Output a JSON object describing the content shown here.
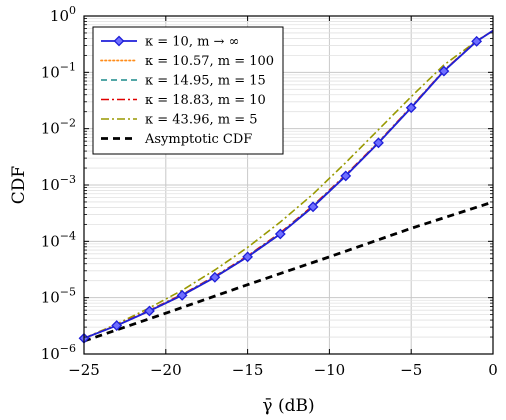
{
  "chart_data": {
    "type": "line",
    "xlabel": "γ̄ (dB)",
    "ylabel": "CDF",
    "xlim": [
      -25,
      0
    ],
    "ylim_exponents": [
      -6,
      0
    ],
    "y_scale": "log",
    "grid": true,
    "legend_position": "top-left",
    "x_ticks": [
      -25,
      -20,
      -15,
      -10,
      -5,
      0
    ],
    "x_tick_labels": [
      "−25",
      "−20",
      "−15",
      "−10",
      "−5",
      "0"
    ],
    "y_tick_exponents": [
      -6,
      -5,
      -4,
      -3,
      -2,
      -1,
      0
    ],
    "y_tick_base": "10",
    "series": [
      {
        "name": "κ = 10, m → ∞",
        "color": "#1f1fd9",
        "style": "solid-diamond",
        "x": [
          -25,
          -23,
          -21,
          -19,
          -17,
          -15,
          -13,
          -11,
          -9,
          -7,
          -5,
          -3,
          -1,
          0
        ],
        "y": [
          1.9e-06,
          3.2e-06,
          5.8e-06,
          1.1e-05,
          2.3e-05,
          5.3e-05,
          0.000135,
          0.00041,
          0.00145,
          0.0056,
          0.0235,
          0.105,
          0.355,
          0.55
        ]
      },
      {
        "name": "κ = 10.57, m = 100",
        "color": "#ff8c1a",
        "style": "dotted",
        "x": [
          -25,
          -23,
          -21,
          -19,
          -17,
          -15,
          -13,
          -11,
          -9,
          -7,
          -5,
          -3,
          -1,
          0
        ],
        "y": [
          1.9e-06,
          3.2e-06,
          5.8e-06,
          1.1e-05,
          2.3e-05,
          5.3e-05,
          0.000136,
          0.00041,
          0.00146,
          0.00565,
          0.0237,
          0.106,
          0.357,
          0.55
        ]
      },
      {
        "name": "κ = 14.95, m = 15",
        "color": "#1a8a8a",
        "style": "dashed",
        "x": [
          -25,
          -23,
          -21,
          -19,
          -17,
          -15,
          -13,
          -11,
          -9,
          -7,
          -5,
          -3,
          -1,
          0
        ],
        "y": [
          1.9e-06,
          3.2e-06,
          5.9e-06,
          1.12e-05,
          2.35e-05,
          5.4e-05,
          0.000138,
          0.00042,
          0.00148,
          0.0057,
          0.024,
          0.107,
          0.36,
          0.55
        ]
      },
      {
        "name": "κ = 18.83, m = 10",
        "color": "#e00000",
        "style": "dashdot",
        "x": [
          -25,
          -23,
          -21,
          -19,
          -17,
          -15,
          -13,
          -11,
          -9,
          -7,
          -5,
          -3,
          -1,
          0
        ],
        "y": [
          1.9e-06,
          3.25e-06,
          6e-06,
          1.14e-05,
          2.4e-05,
          5.5e-05,
          0.000142,
          0.00043,
          0.00152,
          0.0058,
          0.0245,
          0.108,
          0.36,
          0.55
        ]
      },
      {
        "name": "κ = 43.96, m = 5",
        "color": "#999900",
        "style": "dashdot",
        "x": [
          -25,
          -23,
          -21,
          -19,
          -17,
          -15,
          -13,
          -11,
          -9,
          -7,
          -5,
          -3,
          -1,
          0
        ],
        "y": [
          1.9e-06,
          3.4e-06,
          6.6e-06,
          1.35e-05,
          3.1e-05,
          7.8e-05,
          0.00022,
          0.00069,
          0.0025,
          0.0096,
          0.037,
          0.135,
          0.36,
          0.55
        ]
      },
      {
        "name": "Asymptotic CDF",
        "color": "#000000",
        "style": "dashed-thick",
        "x": [
          -25,
          -20,
          -15,
          -10,
          -5,
          0
        ],
        "y": [
          1.7e-06,
          5.3e-06,
          1.7e-05,
          5.3e-05,
          0.00017,
          0.0005
        ]
      }
    ]
  }
}
